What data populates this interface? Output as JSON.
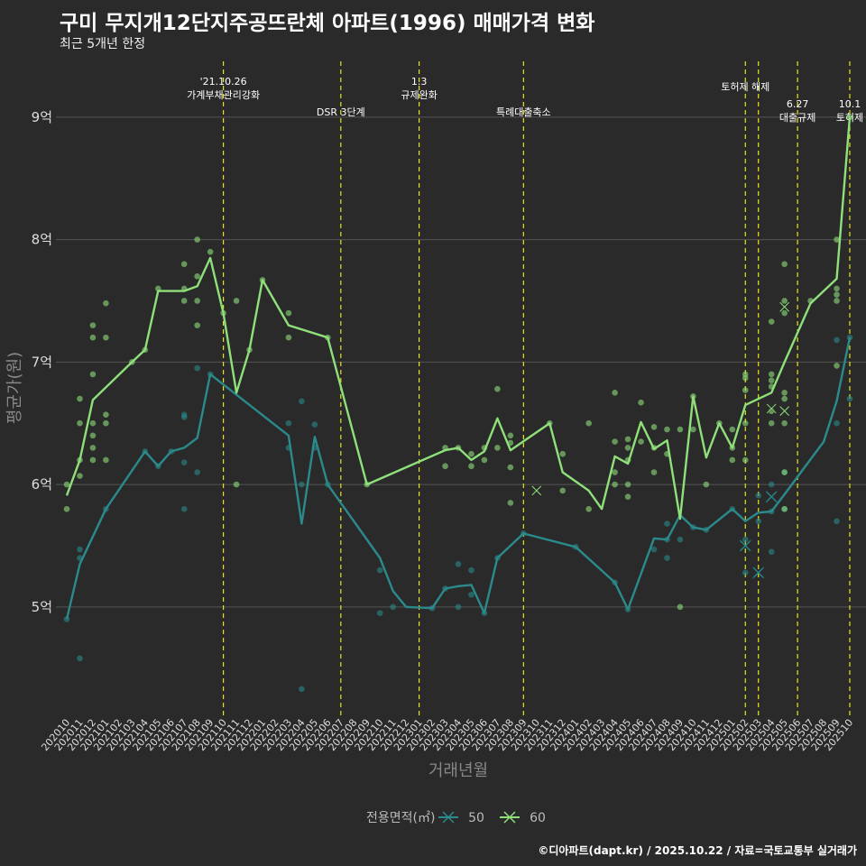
{
  "header": {
    "title": "구미 무지개12단지주공뜨란체 아파트(1996) 매매가격 변화",
    "subtitle": "최근 5개년 한정",
    "caption": "©디아파트(dapt.kr) / 2025.10.22 / 자료=국토교통부 실거래가"
  },
  "colors": {
    "s50": "#2a8a8c",
    "s60": "#8fe07a",
    "vline": "#e6e619",
    "grid": "#555555"
  },
  "chart_data": {
    "type": "line",
    "title": "구미 무지개12단지주공뜨란체 아파트(1996) 매매가격 변화",
    "xlabel": "거래년월",
    "ylabel": "평균가(원)",
    "ylim": [
      4.1,
      9.5
    ],
    "yticks": [
      {
        "v": 5,
        "label": "5억"
      },
      {
        "v": 6,
        "label": "6억"
      },
      {
        "v": 7,
        "label": "7억"
      },
      {
        "v": 8,
        "label": "8억"
      },
      {
        "v": 9,
        "label": "9억"
      }
    ],
    "categories": [
      "202010",
      "202011",
      "202012",
      "202101",
      "202102",
      "202103",
      "202104",
      "202105",
      "202106",
      "202107",
      "202108",
      "202109",
      "202110",
      "202111",
      "202112",
      "202201",
      "202202",
      "202203",
      "202204",
      "202205",
      "202206",
      "202207",
      "202208",
      "202209",
      "202210",
      "202211",
      "202212",
      "202301",
      "202302",
      "202303",
      "202304",
      "202305",
      "202306",
      "202307",
      "202308",
      "202309",
      "202310",
      "202311",
      "202312",
      "202401",
      "202402",
      "202403",
      "202404",
      "202405",
      "202406",
      "202407",
      "202408",
      "202409",
      "202410",
      "202411",
      "202412",
      "202501",
      "202502",
      "202503",
      "202504",
      "202505",
      "202506",
      "202507",
      "202508",
      "202509",
      "202510"
    ],
    "legend": {
      "title": "전용면적(㎡)",
      "items": [
        "50",
        "60"
      ]
    },
    "events": [
      {
        "x": 12,
        "lines": [
          "'21.10.26",
          "가계부채관리강화"
        ],
        "row": 0
      },
      {
        "x": 21,
        "lines": [
          "DSR 3단계"
        ],
        "row": 2
      },
      {
        "x": 27,
        "lines": [
          "1.3",
          "규제완화"
        ],
        "row": 0
      },
      {
        "x": 35,
        "lines": [
          "특례대출축소"
        ],
        "row": 2
      },
      {
        "x": 52,
        "lines": [
          "토허제 해제"
        ],
        "row": 1
      },
      {
        "x": 53,
        "lines": [],
        "row": 1
      },
      {
        "x": 56,
        "lines": [
          "6.27",
          "대출규제"
        ],
        "row": 3
      },
      {
        "x": 60,
        "lines": [
          "10.1",
          "토허제"
        ],
        "row": 3
      }
    ],
    "series": [
      {
        "name": "50",
        "line": [
          [
            0,
            4.9
          ],
          [
            1,
            5.35
          ],
          [
            3,
            5.8
          ],
          [
            6,
            6.27
          ],
          [
            7,
            6.15
          ],
          [
            8,
            6.27
          ],
          [
            9,
            6.3
          ],
          [
            10,
            6.38
          ],
          [
            11,
            6.9
          ],
          [
            17,
            6.4
          ],
          [
            18,
            5.68
          ],
          [
            19,
            6.39
          ],
          [
            20,
            6.0
          ],
          [
            24,
            5.4
          ],
          [
            25,
            5.13
          ],
          [
            26,
            5.0
          ],
          [
            28,
            4.99
          ],
          [
            29,
            5.15
          ],
          [
            30,
            5.17
          ],
          [
            31,
            5.18
          ],
          [
            32,
            4.95
          ],
          [
            33,
            5.4
          ],
          [
            35,
            5.6
          ],
          [
            39,
            5.49
          ],
          [
            42,
            5.2
          ],
          [
            43,
            4.98
          ],
          [
            45,
            5.56
          ],
          [
            46,
            5.55
          ],
          [
            47,
            5.75
          ],
          [
            48,
            5.65
          ],
          [
            49,
            5.63
          ],
          [
            51,
            5.8
          ],
          [
            52,
            5.7
          ],
          [
            53,
            5.77
          ],
          [
            54,
            5.78
          ],
          [
            55,
            5.92
          ],
          [
            58,
            6.35
          ],
          [
            59,
            6.68
          ],
          [
            60,
            7.2
          ]
        ],
        "points": [
          [
            0,
            4.9
          ],
          [
            1,
            5.47
          ],
          [
            1,
            5.4
          ],
          [
            1,
            4.58
          ],
          [
            3,
            5.8
          ],
          [
            6,
            6.27
          ],
          [
            7,
            6.15
          ],
          [
            8,
            6.27
          ],
          [
            9,
            6.57
          ],
          [
            9,
            6.55
          ],
          [
            9,
            6.18
          ],
          [
            9,
            5.8
          ],
          [
            10,
            6.95
          ],
          [
            10,
            6.1
          ],
          [
            11,
            6.9
          ],
          [
            17,
            6.5
          ],
          [
            17,
            6.3
          ],
          [
            18,
            6.68
          ],
          [
            18,
            6.0
          ],
          [
            18,
            4.33
          ],
          [
            19,
            6.49
          ],
          [
            19,
            6.3
          ],
          [
            20,
            6.0
          ],
          [
            24,
            5.3
          ],
          [
            24,
            4.95
          ],
          [
            25,
            5.0
          ],
          [
            28,
            4.99
          ],
          [
            29,
            5.15
          ],
          [
            30,
            5.35
          ],
          [
            30,
            5.0
          ],
          [
            31,
            5.3
          ],
          [
            31,
            5.1
          ],
          [
            32,
            4.95
          ],
          [
            33,
            5.4
          ],
          [
            35,
            5.6
          ],
          [
            39,
            5.49
          ],
          [
            42,
            5.2
          ],
          [
            43,
            4.98
          ],
          [
            45,
            5.47
          ],
          [
            46,
            5.68
          ],
          [
            46,
            5.55
          ],
          [
            46,
            5.4
          ],
          [
            47,
            5.55
          ],
          [
            48,
            5.65
          ],
          [
            49,
            5.63
          ],
          [
            51,
            5.8
          ],
          [
            52,
            5.55
          ],
          [
            52,
            5.28
          ],
          [
            53,
            5.7
          ],
          [
            53,
            5.91
          ],
          [
            54,
            5.78
          ],
          [
            54,
            6.0
          ],
          [
            54,
            5.45
          ],
          [
            55,
            5.8
          ],
          [
            55,
            6.1
          ],
          [
            59,
            7.18
          ],
          [
            59,
            6.5
          ],
          [
            59,
            5.7
          ],
          [
            60,
            7.2
          ],
          [
            60,
            6.7
          ]
        ],
        "crosses": [
          [
            52,
            5.5
          ],
          [
            53,
            5.28
          ],
          [
            54,
            5.9
          ]
        ]
      },
      {
        "name": "60",
        "line": [
          [
            0,
            5.91
          ],
          [
            1,
            6.2
          ],
          [
            2,
            6.69
          ],
          [
            5,
            7.0
          ],
          [
            6,
            7.1
          ],
          [
            7,
            7.58
          ],
          [
            8,
            7.58
          ],
          [
            9,
            7.58
          ],
          [
            10,
            7.62
          ],
          [
            11,
            7.85
          ],
          [
            12,
            7.4
          ],
          [
            13,
            6.75
          ],
          [
            14,
            7.1
          ],
          [
            15,
            7.67
          ],
          [
            17,
            7.3
          ],
          [
            20,
            7.2
          ],
          [
            23,
            6.0
          ],
          [
            29,
            6.28
          ],
          [
            30,
            6.3
          ],
          [
            31,
            6.2
          ],
          [
            32,
            6.27
          ],
          [
            33,
            6.54
          ],
          [
            34,
            6.28
          ],
          [
            37,
            6.5
          ],
          [
            38,
            6.1
          ],
          [
            40,
            5.95
          ],
          [
            41,
            5.8
          ],
          [
            42,
            6.23
          ],
          [
            43,
            6.17
          ],
          [
            44,
            6.51
          ],
          [
            45,
            6.29
          ],
          [
            46,
            6.36
          ],
          [
            47,
            5.72
          ],
          [
            48,
            6.72
          ],
          [
            49,
            6.22
          ],
          [
            50,
            6.5
          ],
          [
            51,
            6.3
          ],
          [
            52,
            6.65
          ],
          [
            54,
            6.75
          ],
          [
            55,
            7.0
          ],
          [
            57,
            7.48
          ],
          [
            59,
            7.68
          ],
          [
            60,
            9.0
          ]
        ],
        "points": [
          [
            0,
            6.0
          ],
          [
            0,
            5.8
          ],
          [
            1,
            6.7
          ],
          [
            1,
            6.5
          ],
          [
            1,
            6.2
          ],
          [
            1,
            6.07
          ],
          [
            2,
            7.3
          ],
          [
            2,
            7.2
          ],
          [
            2,
            6.9
          ],
          [
            2,
            6.5
          ],
          [
            2,
            6.4
          ],
          [
            2,
            6.3
          ],
          [
            2,
            6.2
          ],
          [
            3,
            7.48
          ],
          [
            3,
            7.2
          ],
          [
            3,
            6.57
          ],
          [
            3,
            6.5
          ],
          [
            3,
            6.2
          ],
          [
            5,
            7.0
          ],
          [
            6,
            7.1
          ],
          [
            7,
            7.6
          ],
          [
            9,
            7.8
          ],
          [
            9,
            7.6
          ],
          [
            9,
            7.5
          ],
          [
            10,
            8.0
          ],
          [
            10,
            7.7
          ],
          [
            10,
            7.5
          ],
          [
            10,
            7.3
          ],
          [
            11,
            7.9
          ],
          [
            12,
            7.4
          ],
          [
            13,
            7.5
          ],
          [
            13,
            6.0
          ],
          [
            14,
            7.1
          ],
          [
            15,
            7.67
          ],
          [
            17,
            7.4
          ],
          [
            17,
            7.2
          ],
          [
            20,
            7.2
          ],
          [
            23,
            6.0
          ],
          [
            29,
            6.3
          ],
          [
            29,
            6.15
          ],
          [
            30,
            6.3
          ],
          [
            31,
            6.25
          ],
          [
            31,
            6.15
          ],
          [
            32,
            6.3
          ],
          [
            32,
            6.2
          ],
          [
            33,
            6.78
          ],
          [
            33,
            6.3
          ],
          [
            34,
            6.4
          ],
          [
            34,
            6.34
          ],
          [
            34,
            6.14
          ],
          [
            34,
            5.85
          ],
          [
            37,
            6.5
          ],
          [
            38,
            6.25
          ],
          [
            38,
            5.95
          ],
          [
            40,
            6.5
          ],
          [
            40,
            5.8
          ],
          [
            42,
            6.75
          ],
          [
            42,
            6.35
          ],
          [
            42,
            6.1
          ],
          [
            42,
            6.0
          ],
          [
            43,
            6.37
          ],
          [
            43,
            6.3
          ],
          [
            43,
            6.2
          ],
          [
            43,
            6.0
          ],
          [
            43,
            5.9
          ],
          [
            44,
            6.67
          ],
          [
            44,
            6.35
          ],
          [
            45,
            6.47
          ],
          [
            45,
            6.3
          ],
          [
            45,
            6.1
          ],
          [
            46,
            6.45
          ],
          [
            46,
            6.25
          ],
          [
            47,
            6.45
          ],
          [
            47,
            5.0
          ],
          [
            48,
            6.72
          ],
          [
            48,
            6.45
          ],
          [
            49,
            6.0
          ],
          [
            50,
            6.5
          ],
          [
            51,
            6.45
          ],
          [
            51,
            6.3
          ],
          [
            51,
            6.2
          ],
          [
            52,
            6.9
          ],
          [
            52,
            6.87
          ],
          [
            52,
            6.77
          ],
          [
            52,
            6.5
          ],
          [
            52,
            6.2
          ],
          [
            54,
            6.9
          ],
          [
            54,
            6.85
          ],
          [
            54,
            6.8
          ],
          [
            54,
            6.6
          ],
          [
            54,
            6.5
          ],
          [
            54,
            7.33
          ],
          [
            55,
            7.8
          ],
          [
            55,
            7.5
          ],
          [
            55,
            7.4
          ],
          [
            55,
            6.75
          ],
          [
            55,
            6.7
          ],
          [
            55,
            6.5
          ],
          [
            55,
            6.1
          ],
          [
            55,
            5.8
          ],
          [
            57,
            7.5
          ],
          [
            59,
            8.0
          ],
          [
            59,
            7.6
          ],
          [
            59,
            7.55
          ],
          [
            59,
            7.5
          ],
          [
            59,
            6.97
          ],
          [
            60,
            9.0
          ]
        ],
        "crosses": [
          [
            36,
            5.95
          ],
          [
            54,
            6.62
          ],
          [
            55,
            7.45
          ],
          [
            55,
            6.6
          ]
        ]
      }
    ]
  }
}
